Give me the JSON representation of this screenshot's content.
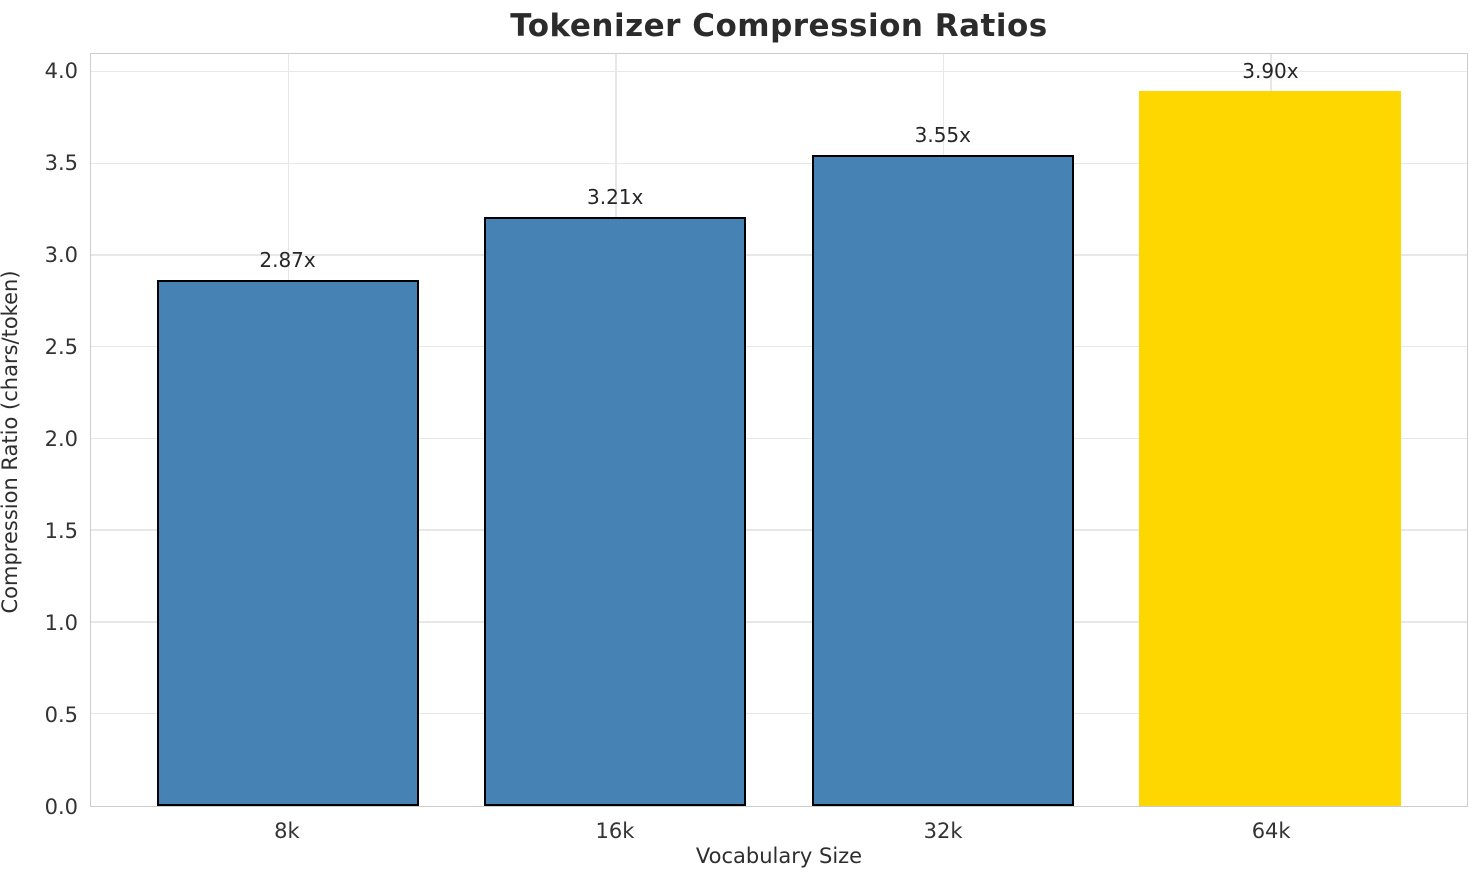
{
  "chart_data": {
    "type": "bar",
    "title": "Tokenizer Compression Ratios",
    "xlabel": "Vocabulary Size",
    "ylabel": "Compression Ratio (chars/token)",
    "categories": [
      "8k",
      "16k",
      "32k",
      "64k"
    ],
    "values": [
      2.87,
      3.21,
      3.55,
      3.9
    ],
    "bar_labels": [
      "2.87x",
      "3.21x",
      "3.55x",
      "3.90x"
    ],
    "ylim": [
      0,
      4.1
    ],
    "yticks": [
      0.0,
      0.5,
      1.0,
      1.5,
      2.0,
      2.5,
      3.0,
      3.5,
      4.0
    ],
    "ytick_labels": [
      "0.0",
      "0.5",
      "1.0",
      "1.5",
      "2.0",
      "2.5",
      "3.0",
      "3.5",
      "4.0"
    ],
    "grid": true,
    "legend": "none",
    "colors": {
      "bar_default": "#4682B4",
      "bar_highlight": "#FFD700",
      "bar_edge": "#000000",
      "gridline": "#e7e7e7",
      "spine": "#cccccc",
      "text": "#2b2b2b"
    },
    "bar_colors": [
      "#4682B4",
      "#4682B4",
      "#4682B4",
      "#FFD700"
    ],
    "bar_edges": [
      "#000000",
      "#000000",
      "#000000",
      "none"
    ]
  }
}
